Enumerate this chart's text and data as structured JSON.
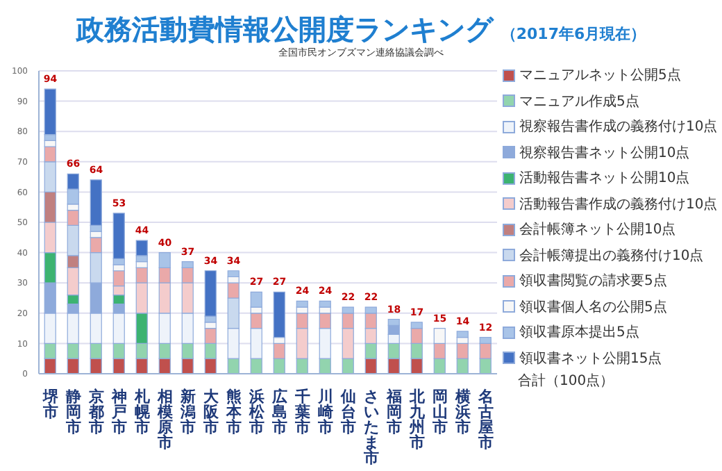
{
  "chart_data": {
    "type": "bar",
    "stacked": true,
    "title": "政務活動費情報公開度ランキング",
    "subtitle": "（2017年6月現在）",
    "annotations": [
      "全国市民オンブズマン連絡協議会調べ",
      "合計（100点）"
    ],
    "categories": [
      "堺市",
      "静岡市",
      "京都市",
      "神戸市",
      "札幌市",
      "相模原市",
      "新潟市",
      "大阪市",
      "熊本市",
      "浜松市",
      "広島市",
      "千葉市",
      "川崎市",
      "仙台市",
      "さいたま市",
      "福岡市",
      "北九州市",
      "岡山市",
      "横浜市",
      "名古屋市"
    ],
    "series": [
      {
        "name": "マニュアルネット公開5点",
        "color": "#c0504d",
        "values": [
          5,
          5,
          5,
          5,
          5,
          5,
          5,
          5,
          0,
          0,
          0,
          0,
          0,
          0,
          5,
          5,
          5,
          0,
          0,
          0
        ]
      },
      {
        "name": "マニュアル作成5点",
        "color": "#92d4ae",
        "values": [
          5,
          5,
          5,
          5,
          5,
          5,
          5,
          5,
          5,
          5,
          5,
          5,
          5,
          5,
          5,
          5,
          5,
          5,
          5,
          5
        ]
      },
      {
        "name": "視察報告書作成の義務付け10点",
        "color": "#eef3fa",
        "values": [
          10,
          10,
          10,
          10,
          0,
          10,
          10,
          0,
          10,
          10,
          0,
          0,
          10,
          0,
          0,
          3,
          0,
          0,
          0,
          0
        ]
      },
      {
        "name": "視察報告書ネット公開10点",
        "color": "#8eaadb",
        "values": [
          10,
          3,
          10,
          3,
          0,
          0,
          0,
          0,
          0,
          0,
          0,
          0,
          0,
          0,
          0,
          3,
          0,
          0,
          0,
          0
        ]
      },
      {
        "name": "活動報告書ネット公開10点",
        "color": "#3cb371",
        "values": [
          10,
          3,
          0,
          3,
          10,
          0,
          0,
          0,
          0,
          0,
          0,
          0,
          0,
          0,
          0,
          0,
          0,
          0,
          0,
          0
        ]
      },
      {
        "name": "活動報告書作成の義務付け10点",
        "color": "#f4cccc",
        "values": [
          10,
          9,
          0,
          3,
          10,
          10,
          10,
          0,
          0,
          0,
          0,
          10,
          0,
          10,
          5,
          0,
          0,
          0,
          0,
          0
        ]
      },
      {
        "name": "会計帳簿ネット公開10点",
        "color": "#c08080",
        "values": [
          10,
          4,
          0,
          0,
          0,
          0,
          0,
          0,
          0,
          0,
          0,
          0,
          0,
          0,
          0,
          0,
          0,
          0,
          0,
          0
        ]
      },
      {
        "name": "会計帳簿提出の義務付け10点",
        "color": "#c9d9ee",
        "values": [
          10,
          10,
          10,
          0,
          0,
          0,
          0,
          0,
          10,
          0,
          0,
          0,
          0,
          0,
          0,
          0,
          0,
          0,
          0,
          0
        ]
      },
      {
        "name": "領収書閲覧の請求要5点",
        "color": "#eaa9a9",
        "values": [
          5,
          5,
          5,
          5,
          5,
          5,
          5,
          5,
          5,
          5,
          5,
          5,
          5,
          5,
          5,
          0,
          5,
          5,
          5,
          5
        ]
      },
      {
        "name": "領収書個人名の公開5点",
        "color": "#f7f7f7",
        "values": [
          2,
          2,
          2,
          2,
          2,
          0,
          0,
          2,
          2,
          2,
          2,
          2,
          2,
          0,
          0,
          0,
          0,
          5,
          2,
          0
        ]
      },
      {
        "name": "領収書原本提出5点",
        "color": "#a9c4e8",
        "values": [
          2,
          5,
          2,
          2,
          2,
          5,
          2,
          2,
          2,
          5,
          0,
          2,
          2,
          2,
          2,
          2,
          2,
          0,
          2,
          2
        ]
      },
      {
        "name": "領収書ネット公開15点",
        "color": "#4472c4",
        "values": [
          15,
          5,
          15,
          15,
          5,
          0,
          0,
          15,
          0,
          0,
          15,
          0,
          0,
          0,
          0,
          0,
          0,
          0,
          0,
          0
        ]
      }
    ],
    "totals": [
      "94",
      "66",
      "64",
      "53",
      "44",
      "40",
      "37",
      "34",
      "34",
      "27",
      "27",
      "24",
      "24",
      "22",
      "22",
      "18",
      "17",
      "15",
      "14",
      "12"
    ],
    "ylim": [
      0,
      100
    ],
    "yticks": [
      0,
      10,
      20,
      30,
      40,
      50,
      60,
      70,
      80,
      90,
      100
    ],
    "grid": "y",
    "legend": "right"
  }
}
